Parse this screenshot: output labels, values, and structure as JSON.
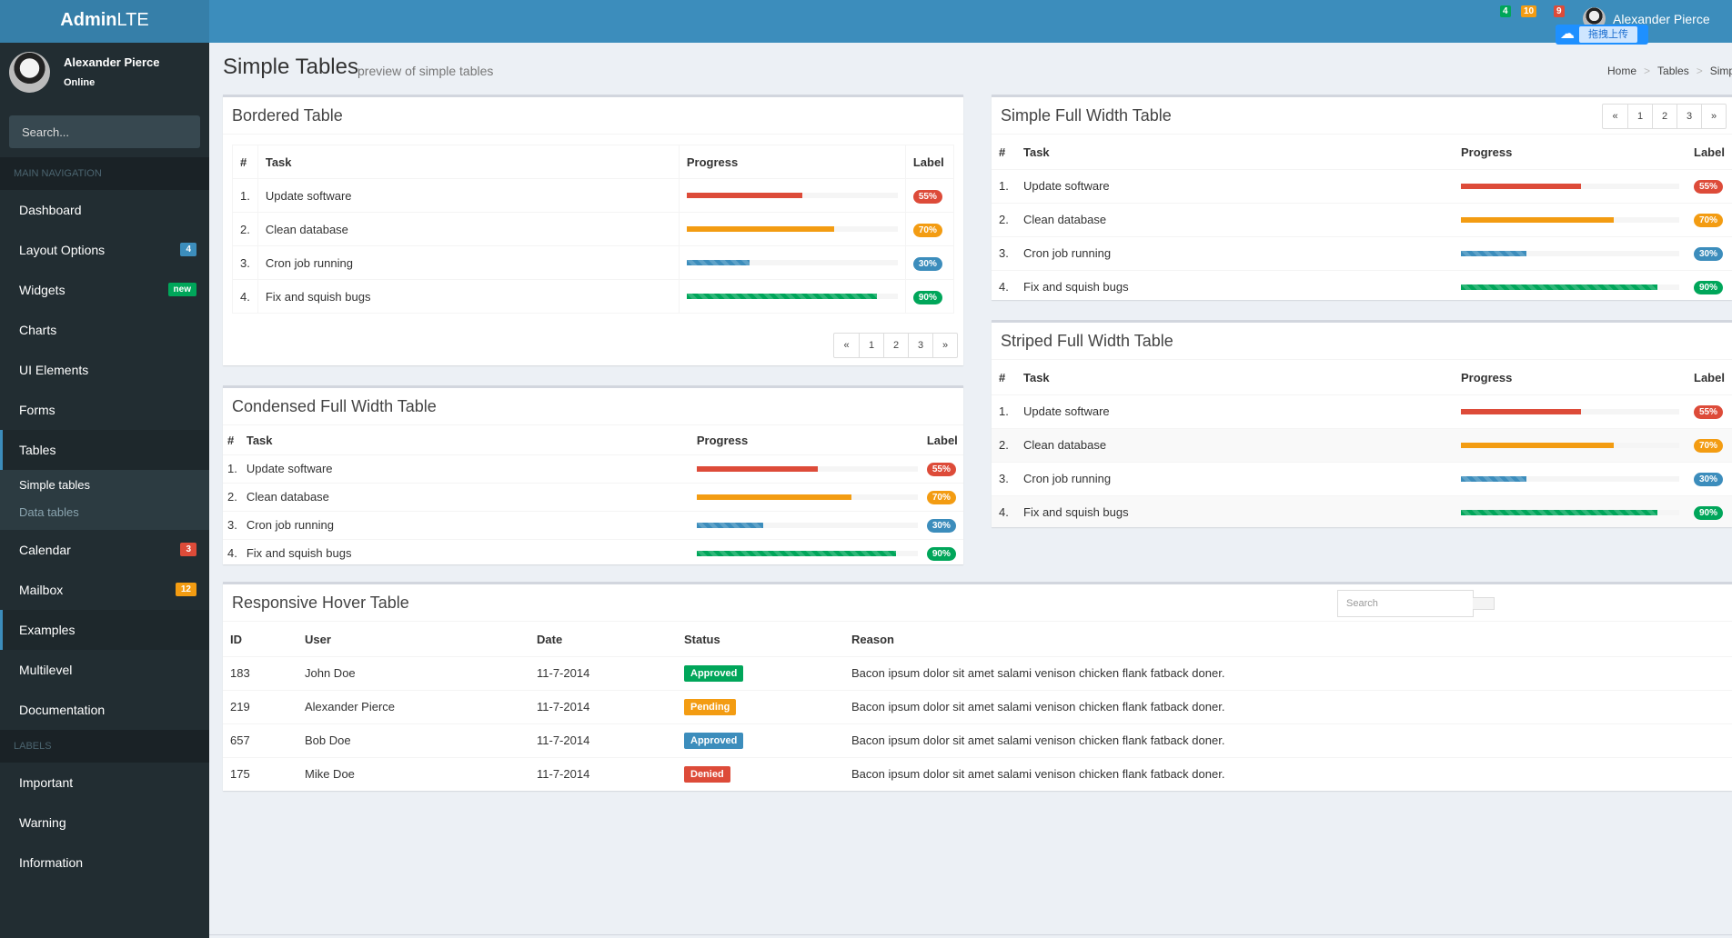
{
  "app": {
    "logo_bold": "Admin",
    "logo_rest": "LTE",
    "accent": "#3c8dbc"
  },
  "header": {
    "badges": [
      {
        "count": "4",
        "color": "#00a65a"
      },
      {
        "count": "10",
        "color": "#f39c12"
      },
      {
        "count": "9",
        "color": "#dd4b39"
      }
    ],
    "user_name": "Alexander Pierce",
    "upload_label": "拖拽上传"
  },
  "sidebar": {
    "user_name": "Alexander Pierce",
    "user_status": "Online",
    "search_placeholder": "Search...",
    "nav_header": "MAIN NAVIGATION",
    "items": [
      {
        "label": "Dashboard"
      },
      {
        "label": "Layout Options",
        "badge": "4",
        "badge_color": "blue"
      },
      {
        "label": "Widgets",
        "badge": "new",
        "badge_color": "green"
      },
      {
        "label": "Charts"
      },
      {
        "label": "UI Elements"
      },
      {
        "label": "Forms"
      },
      {
        "label": "Tables",
        "active": true
      },
      {
        "label": "Calendar",
        "badge": "3",
        "badge_color": "red"
      },
      {
        "label": "Mailbox",
        "badge": "12",
        "badge_color": "orange"
      },
      {
        "label": "Examples"
      },
      {
        "label": "Multilevel"
      },
      {
        "label": "Documentation"
      }
    ],
    "submenu": [
      {
        "label": "Simple tables",
        "active": true
      },
      {
        "label": "Data tables"
      }
    ],
    "labels_header": "LABELS",
    "labels": [
      {
        "label": "Important"
      },
      {
        "label": "Warning"
      },
      {
        "label": "Information"
      }
    ]
  },
  "page": {
    "title": "Simple Tables",
    "subtitle": "preview of simple tables",
    "breadcrumb": [
      "Home",
      "Tables",
      "Simple"
    ]
  },
  "task_columns": {
    "num": "#",
    "task": "Task",
    "progress": "Progress",
    "label": "Label"
  },
  "tasks": [
    {
      "num": "1.",
      "task": "Update software",
      "progress": 0.55,
      "label": "55%",
      "color": "red"
    },
    {
      "num": "2.",
      "task": "Clean database",
      "progress": 0.7,
      "label": "70%",
      "color": "yellow"
    },
    {
      "num": "3.",
      "task": "Cron job running",
      "progress": 0.3,
      "label": "30%",
      "color": "blue"
    },
    {
      "num": "4.",
      "task": "Fix and squish bugs",
      "progress": 0.9,
      "label": "90%",
      "color": "green"
    }
  ],
  "boxes": {
    "bordered": "Bordered Table",
    "condensed": "Condensed Full Width Table",
    "simple": "Simple Full Width Table",
    "striped": "Striped Full Width Table",
    "hover": "Responsive Hover Table"
  },
  "pagination": [
    "«",
    "1",
    "2",
    "3",
    "»"
  ],
  "hover_table": {
    "search_placeholder": "Search",
    "columns": [
      "ID",
      "User",
      "Date",
      "Status",
      "Reason"
    ],
    "rows": [
      {
        "id": "183",
        "user": "John Doe",
        "date": "11-7-2014",
        "status": "Approved",
        "status_color": "green",
        "reason": "Bacon ipsum dolor sit amet salami venison chicken flank fatback doner."
      },
      {
        "id": "219",
        "user": "Alexander Pierce",
        "date": "11-7-2014",
        "status": "Pending",
        "status_color": "orange",
        "reason": "Bacon ipsum dolor sit amet salami venison chicken flank fatback doner."
      },
      {
        "id": "657",
        "user": "Bob Doe",
        "date": "11-7-2014",
        "status": "Approved",
        "status_color": "blue",
        "reason": "Bacon ipsum dolor sit amet salami venison chicken flank fatback doner."
      },
      {
        "id": "175",
        "user": "Mike Doe",
        "date": "11-7-2014",
        "status": "Denied",
        "status_color": "red",
        "reason": "Bacon ipsum dolor sit amet salami venison chicken flank fatback doner."
      }
    ]
  }
}
